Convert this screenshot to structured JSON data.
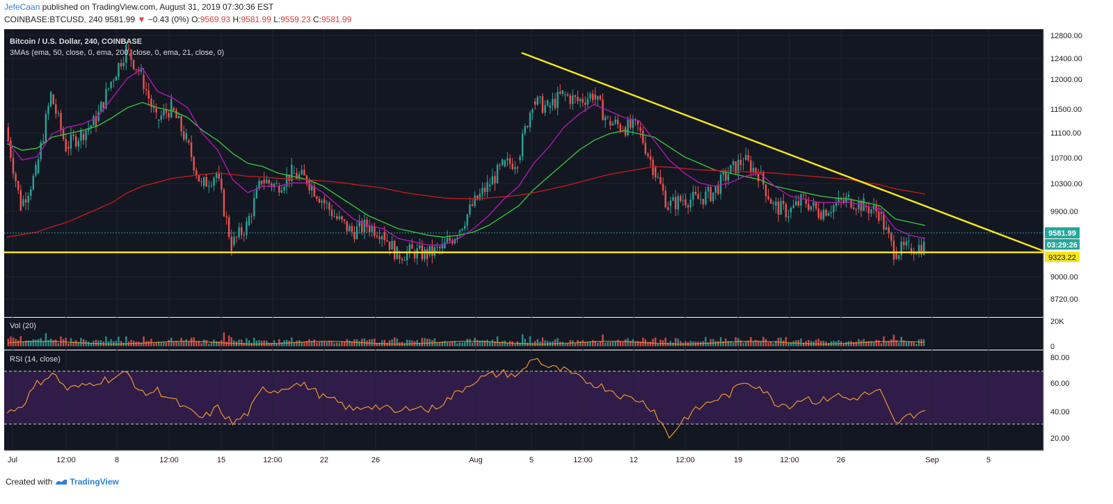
{
  "header": {
    "author": "JefeCaan",
    "published_text": " published on TradingView.com, August 31, 2019 07:30:36 EST",
    "symbol": "COINBASE:BTCUSD, 240",
    "last": "9581.99",
    "change_icon": "down-triangle-icon",
    "change": "−0.43 (0%)",
    "o_label": "O:",
    "o": "9569.93",
    "h_label": "H:",
    "h": "9581.99",
    "l_label": "L:",
    "l": "9559.23",
    "c_label": "C:",
    "c": "9581.99"
  },
  "legend": {
    "title": "Bitcoin / U.S. Dollar, 240, COINBASE",
    "mas": "3MAs (ema, 50, close, 0, ema, 200, close, 0, ema, 21, close, 0)",
    "vol": "Vol (20)",
    "rsi": "RSI (14, close)"
  },
  "price_badges": {
    "last": "9581.99",
    "countdown": "03:29:26",
    "support": "9323.22"
  },
  "footer": {
    "created_with": "Created with",
    "brand": "TradingView",
    "logo_icon": "tradingview-logo-icon"
  },
  "colors": {
    "pane_bg": "#131722",
    "up": "#26a69a",
    "down": "#ef5350",
    "ema50": "#35c43a",
    "ema200": "#c21a1a",
    "ema21": "#b216b6",
    "trendline": "#f5e51b",
    "rsi": "#f0962e",
    "rsi_band": "#3a1f55"
  },
  "chart_data": [
    {
      "type": "candlestick",
      "title": "Bitcoin / U.S. Dollar, 240, COINBASE",
      "y_ticks": [
        "12800.00",
        "12400.00",
        "12000.00",
        "11500.00",
        "11100.00",
        "10700.00",
        "10300.00",
        "9900.00",
        "9000.00",
        "8720.00"
      ],
      "x_ticks": [
        "Jul",
        "12:00",
        "8",
        "12:00",
        "15",
        "12:00",
        "22",
        "26",
        "Aug",
        "5",
        "12:00",
        "12",
        "12:00",
        "19",
        "12:00",
        "26",
        "Sep",
        "5"
      ],
      "ylim": [
        8500,
        12900
      ],
      "close_series": [
        {
          "t": "Jul 1",
          "v": 11400
        },
        {
          "t": "Jul 2",
          "v": 10200
        },
        {
          "t": "Jul 3",
          "v": 10700
        },
        {
          "t": "Jul 4",
          "v": 11900
        },
        {
          "t": "Jul 5",
          "v": 11100
        },
        {
          "t": "Jul 6",
          "v": 11300
        },
        {
          "t": "Jul 7",
          "v": 11500
        },
        {
          "t": "Jul 8",
          "v": 12100
        },
        {
          "t": "Jul 9",
          "v": 12600
        },
        {
          "t": "Jul 10",
          "v": 12200
        },
        {
          "t": "Jul 11",
          "v": 11500
        },
        {
          "t": "Jul 12",
          "v": 11700
        },
        {
          "t": "Jul 13",
          "v": 11200
        },
        {
          "t": "Jul 14",
          "v": 10500
        },
        {
          "t": "Jul 15",
          "v": 10700
        },
        {
          "t": "Jul 16",
          "v": 9600
        },
        {
          "t": "Jul 17",
          "v": 9900
        },
        {
          "t": "Jul 18",
          "v": 10600
        },
        {
          "t": "Jul 19",
          "v": 10500
        },
        {
          "t": "Jul 20",
          "v": 10700
        },
        {
          "t": "Jul 21",
          "v": 10600
        },
        {
          "t": "Jul 22",
          "v": 10300
        },
        {
          "t": "Jul 23",
          "v": 10000
        },
        {
          "t": "Jul 24",
          "v": 9800
        },
        {
          "t": "Jul 25",
          "v": 9900
        },
        {
          "t": "Jul 26",
          "v": 9800
        },
        {
          "t": "Jul 27",
          "v": 9450
        },
        {
          "t": "Jul 28",
          "v": 9500
        },
        {
          "t": "Jul 29",
          "v": 9450
        },
        {
          "t": "Jul 30",
          "v": 9550
        },
        {
          "t": "Jul 31",
          "v": 9800
        },
        {
          "t": "Aug 1",
          "v": 10200
        },
        {
          "t": "Aug 2",
          "v": 10500
        },
        {
          "t": "Aug 3",
          "v": 10800
        },
        {
          "t": "Aug 4",
          "v": 10900
        },
        {
          "t": "Aug 5",
          "v": 11800
        },
        {
          "t": "Aug 6",
          "v": 11700
        },
        {
          "t": "Aug 7",
          "v": 11900
        },
        {
          "t": "Aug 8",
          "v": 11800
        },
        {
          "t": "Aug 9",
          "v": 11900
        },
        {
          "t": "Aug 10",
          "v": 11500
        },
        {
          "t": "Aug 11",
          "v": 11400
        },
        {
          "t": "Aug 12",
          "v": 11400
        },
        {
          "t": "Aug 13",
          "v": 10800
        },
        {
          "t": "Aug 14",
          "v": 10200
        },
        {
          "t": "Aug 15",
          "v": 10300
        },
        {
          "t": "Aug 16",
          "v": 10300
        },
        {
          "t": "Aug 17",
          "v": 10400
        },
        {
          "t": "Aug 18",
          "v": 10700
        },
        {
          "t": "Aug 19",
          "v": 10900
        },
        {
          "t": "Aug 20",
          "v": 10700
        },
        {
          "t": "Aug 21",
          "v": 10200
        },
        {
          "t": "Aug 22",
          "v": 10100
        },
        {
          "t": "Aug 23",
          "v": 10300
        },
        {
          "t": "Aug 24",
          "v": 10100
        },
        {
          "t": "Aug 25",
          "v": 10200
        },
        {
          "t": "Aug 26",
          "v": 10300
        },
        {
          "t": "Aug 27",
          "v": 10200
        },
        {
          "t": "Aug 28",
          "v": 10100
        },
        {
          "t": "Aug 29",
          "v": 9500
        },
        {
          "t": "Aug 30",
          "v": 9550
        },
        {
          "t": "Aug 31",
          "v": 9582
        }
      ],
      "series": [
        {
          "name": "ema 50",
          "values": [
            11150,
            11050,
            11080,
            11250,
            11300,
            11350,
            11420,
            11550,
            11700,
            11780,
            11700,
            11650,
            11550,
            11350,
            11200,
            11000,
            10850,
            10800,
            10700,
            10650,
            10600,
            10500,
            10350,
            10200,
            10050,
            9950,
            9850,
            9800,
            9750,
            9720,
            9750,
            9800,
            9900,
            10050,
            10200,
            10450,
            10650,
            10850,
            11050,
            11200,
            11300,
            11350,
            11300,
            11250,
            11100,
            10950,
            10850,
            10750,
            10700,
            10650,
            10600,
            10500,
            10450,
            10400,
            10350,
            10320,
            10300,
            10250,
            10200,
            10000,
            9950,
            9900
          ]
        },
        {
          "name": "ema 200",
          "values": [
            9720,
            9760,
            9800,
            9880,
            9950,
            10050,
            10150,
            10250,
            10400,
            10500,
            10560,
            10620,
            10650,
            10680,
            10700,
            10680,
            10650,
            10640,
            10620,
            10610,
            10600,
            10580,
            10560,
            10530,
            10500,
            10470,
            10420,
            10380,
            10350,
            10320,
            10310,
            10310,
            10320,
            10340,
            10360,
            10400,
            10450,
            10500,
            10560,
            10620,
            10680,
            10720,
            10760,
            10800,
            10790,
            10770,
            10750,
            10740,
            10730,
            10720,
            10710,
            10700,
            10680,
            10660,
            10640,
            10620,
            10600,
            10560,
            10520,
            10460,
            10420,
            10380
          ]
        },
        {
          "name": "ema 21",
          "values": [
            11200,
            10900,
            10950,
            11300,
            11400,
            11450,
            11550,
            11850,
            12150,
            12300,
            11950,
            11850,
            11700,
            11300,
            11050,
            10600,
            10400,
            10500,
            10500,
            10550,
            10550,
            10400,
            10200,
            10000,
            9900,
            9850,
            9700,
            9650,
            9600,
            9600,
            9700,
            9850,
            10050,
            10300,
            10500,
            10850,
            11100,
            11400,
            11600,
            11750,
            11650,
            11550,
            11500,
            11200,
            10900,
            10700,
            10550,
            10500,
            10550,
            10650,
            10700,
            10500,
            10350,
            10300,
            10250,
            10250,
            10250,
            10200,
            10150,
            9850,
            9750,
            9700
          ]
        },
        {
          "name": "trendline",
          "values": [
            12450,
            9323
          ]
        },
        {
          "name": "support",
          "values": [
            9323.22
          ]
        }
      ]
    },
    {
      "type": "bar",
      "title": "Vol (20)",
      "y_ticks": [
        "20K",
        "0"
      ]
    },
    {
      "type": "line",
      "title": "RSI (14, close)",
      "y_ticks": [
        "80.00",
        "60.00",
        "40.00",
        "20.00"
      ],
      "ylim": [
        10,
        85
      ],
      "bands": [
        30,
        70
      ],
      "values": [
        38,
        44,
        60,
        68,
        56,
        58,
        62,
        64,
        68,
        52,
        55,
        48,
        40,
        34,
        42,
        30,
        38,
        56,
        55,
        60,
        58,
        50,
        46,
        40,
        44,
        42,
        38,
        44,
        40,
        46,
        54,
        62,
        66,
        68,
        66,
        80,
        72,
        70,
        64,
        60,
        56,
        50,
        48,
        40,
        20,
        34,
        42,
        48,
        52,
        62,
        58,
        46,
        44,
        50,
        46,
        52,
        48,
        52,
        54,
        30,
        36,
        40
      ]
    }
  ]
}
